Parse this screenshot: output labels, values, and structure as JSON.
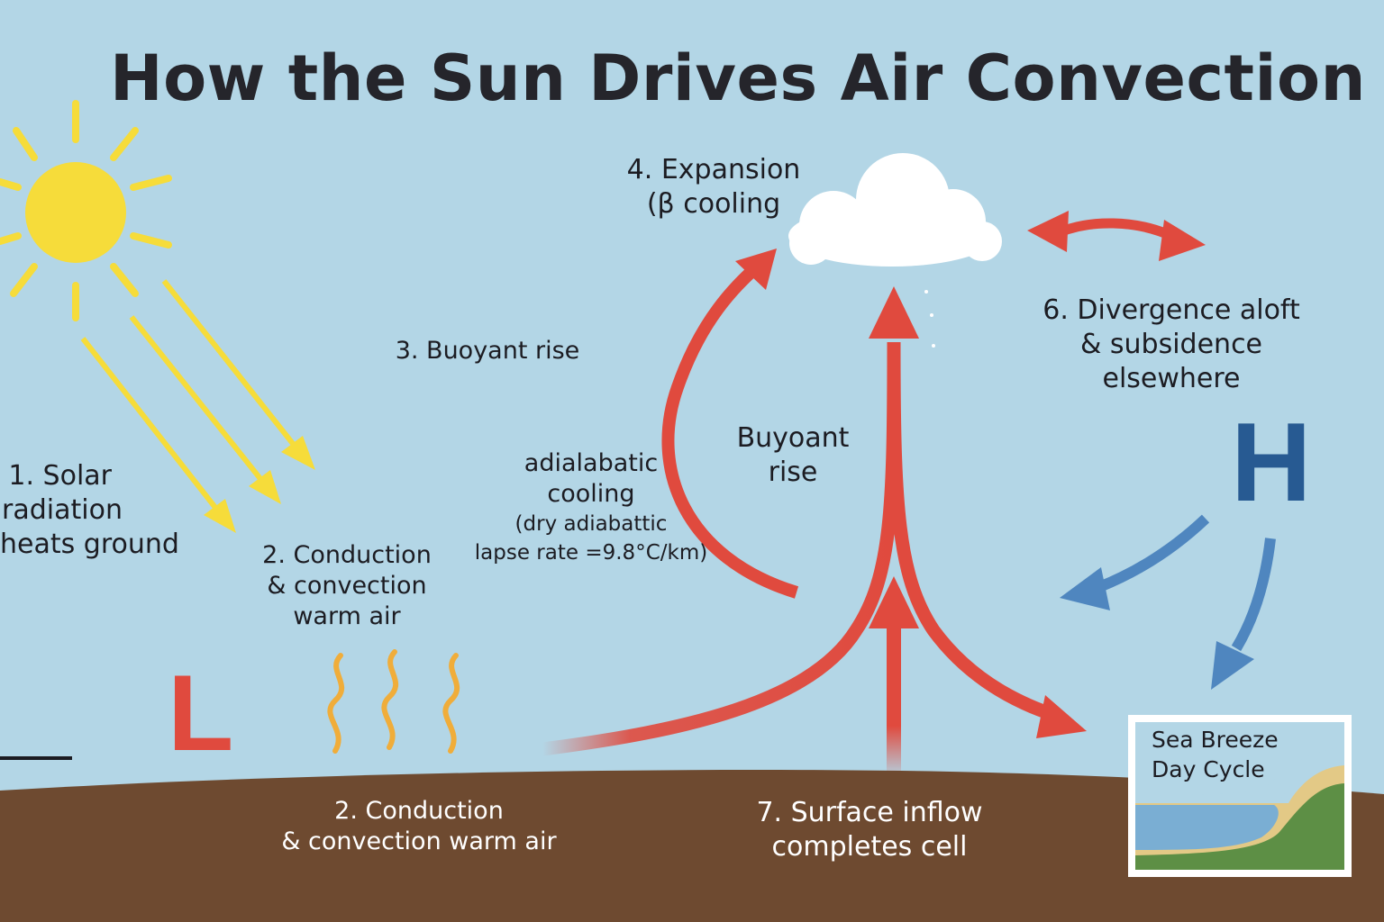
{
  "title": "How the Sun Drives Air Convection",
  "labels": {
    "solar": [
      "1. Solar",
      "radiation",
      "heats ground"
    ],
    "conduction_upper": [
      "2. Conduction",
      "& convection",
      "warm air"
    ],
    "conduction_ground": [
      "2. Conduction",
      "& convection warm air"
    ],
    "buoyant_rise_left": "3. Buoyant rise",
    "adiabatic": [
      "adialabatic",
      "cooling",
      "(dry adiabattic",
      "lapse rate =9.8°C/km)"
    ],
    "buoyant_rise_center": [
      "Buyoant",
      "rise"
    ],
    "expansion": [
      "4. Expansion",
      "(β cooling"
    ],
    "divergence": [
      "6. Divergence aloft",
      "& subsidence",
      "elsewhere"
    ],
    "surface_inflow": [
      "7. Surface inflow",
      "completes cell"
    ],
    "high_pressure": "H",
    "low_pressure": "L"
  },
  "inset": {
    "title": [
      "Sea Breeze",
      "Day Cycle"
    ]
  },
  "colors": {
    "sky": "#b3d6e6",
    "ground": "#6e4a30",
    "sun": "#f6dc3a",
    "warm_arrow": "#e04a3e",
    "cool_arrow": "#4f86bf",
    "heat_wave": "#f0ad3a",
    "high_pressure": "#275a92",
    "low_pressure": "#e04a3e"
  }
}
